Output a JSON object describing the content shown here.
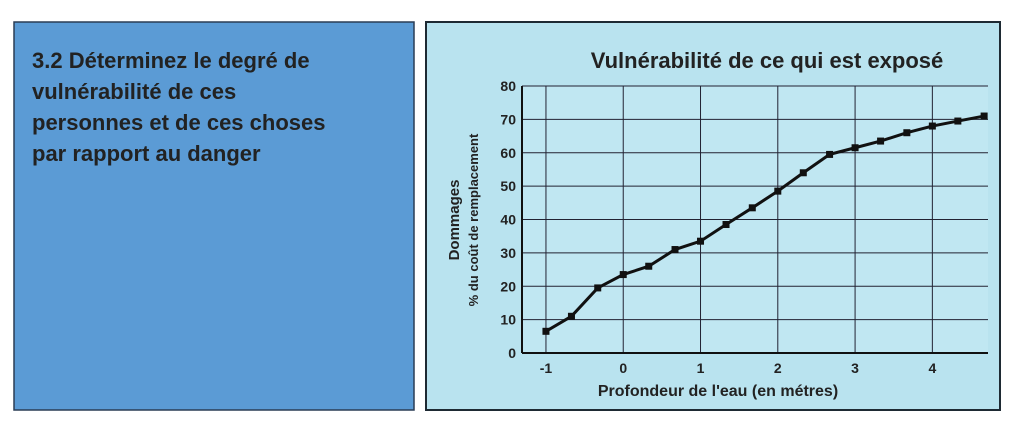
{
  "panel": {
    "lines": [
      "3.2 Déterminez le degré de",
      "vulnérabilité de ces",
      "personnes et de ces choses",
      "par rapport au danger"
    ]
  },
  "chart_data": {
    "type": "line",
    "title": "Vulnérabilité de ce qui est exposé",
    "y_label": [
      "Dommages",
      "% du coût de remplacement"
    ],
    "x_label": "Profondeur de l'eau (en métres)",
    "x": [
      -1,
      -0.67,
      -0.33,
      0,
      0.33,
      0.67,
      1,
      1.33,
      1.67,
      2,
      2.33,
      2.67,
      3,
      3.33,
      3.67,
      4,
      4.33,
      4.67
    ],
    "series": [
      {
        "name": "Dommages",
        "color": "#111111",
        "values": [
          6.5,
          11,
          19.5,
          23.5,
          26,
          31,
          33.5,
          38.5,
          43.5,
          48.5,
          54,
          59.5,
          61.5,
          63.5,
          66,
          68,
          69.5,
          71
        ]
      }
    ],
    "xlim": [
      -1.31,
      4.72
    ],
    "ylim": [
      0,
      80
    ],
    "xticks": [
      -1,
      0,
      1,
      2,
      3,
      4
    ],
    "yticks": [
      0,
      10,
      20,
      30,
      40,
      50,
      60,
      70,
      80
    ],
    "grid": true
  }
}
